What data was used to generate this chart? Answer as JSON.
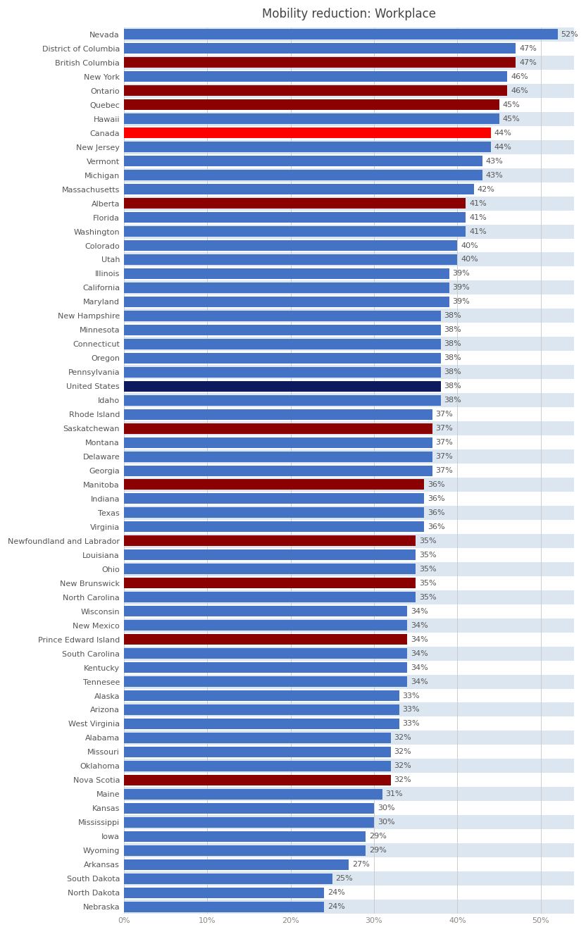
{
  "title": "Mobility reduction: Workplace",
  "categories": [
    "Nevada",
    "District of Columbia",
    "British Columbia",
    "New York",
    "Ontario",
    "Quebec",
    "Hawaii",
    "Canada",
    "New Jersey",
    "Vermont",
    "Michigan",
    "Massachusetts",
    "Alberta",
    "Florida",
    "Washington",
    "Colorado",
    "Utah",
    "Illinois",
    "California",
    "Maryland",
    "New Hampshire",
    "Minnesota",
    "Connecticut",
    "Oregon",
    "Pennsylvania",
    "United States",
    "Idaho",
    "Rhode Island",
    "Saskatchewan",
    "Montana",
    "Delaware",
    "Georgia",
    "Manitoba",
    "Indiana",
    "Texas",
    "Virginia",
    "Newfoundland and Labrador",
    "Louisiana",
    "Ohio",
    "New Brunswick",
    "North Carolina",
    "Wisconsin",
    "New Mexico",
    "Prince Edward Island",
    "South Carolina",
    "Kentucky",
    "Tennesee",
    "Alaska",
    "Arizona",
    "West Virginia",
    "Alabama",
    "Missouri",
    "Oklahoma",
    "Nova Scotia",
    "Maine",
    "Kansas",
    "Mississippi",
    "Iowa",
    "Wyoming",
    "Arkansas",
    "South Dakota",
    "North Dakota",
    "Nebraska"
  ],
  "values": [
    52,
    47,
    47,
    46,
    46,
    45,
    45,
    44,
    44,
    43,
    43,
    42,
    41,
    41,
    41,
    40,
    40,
    39,
    39,
    39,
    38,
    38,
    38,
    38,
    38,
    38,
    38,
    37,
    37,
    37,
    37,
    37,
    36,
    36,
    36,
    36,
    35,
    35,
    35,
    35,
    35,
    34,
    34,
    34,
    34,
    34,
    34,
    33,
    33,
    33,
    32,
    32,
    32,
    32,
    31,
    30,
    30,
    29,
    29,
    27,
    25,
    24,
    24
  ],
  "colors": {
    "Nevada": "#4472C4",
    "District of Columbia": "#4472C4",
    "British Columbia": "#8B0000",
    "New York": "#4472C4",
    "Ontario": "#8B0000",
    "Quebec": "#8B0000",
    "Hawaii": "#4472C4",
    "Canada": "#FF0000",
    "New Jersey": "#4472C4",
    "Vermont": "#4472C4",
    "Michigan": "#4472C4",
    "Massachusetts": "#4472C4",
    "Alberta": "#8B0000",
    "Florida": "#4472C4",
    "Washington": "#4472C4",
    "Colorado": "#4472C4",
    "Utah": "#4472C4",
    "Illinois": "#4472C4",
    "California": "#4472C4",
    "Maryland": "#4472C4",
    "New Hampshire": "#4472C4",
    "Minnesota": "#4472C4",
    "Connecticut": "#4472C4",
    "Oregon": "#4472C4",
    "Pennsylvania": "#4472C4",
    "United States": "#0D1B5E",
    "Idaho": "#4472C4",
    "Rhode Island": "#4472C4",
    "Saskatchewan": "#8B0000",
    "Montana": "#4472C4",
    "Delaware": "#4472C4",
    "Georgia": "#4472C4",
    "Manitoba": "#8B0000",
    "Indiana": "#4472C4",
    "Texas": "#4472C4",
    "Virginia": "#4472C4",
    "Newfoundland and Labrador": "#8B0000",
    "Louisiana": "#4472C4",
    "Ohio": "#4472C4",
    "New Brunswick": "#8B0000",
    "North Carolina": "#4472C4",
    "Wisconsin": "#4472C4",
    "New Mexico": "#4472C4",
    "Prince Edward Island": "#8B0000",
    "South Carolina": "#4472C4",
    "Kentucky": "#4472C4",
    "Tennesee": "#4472C4",
    "Alaska": "#4472C4",
    "Arizona": "#4472C4",
    "West Virginia": "#4472C4",
    "Alabama": "#4472C4",
    "Missouri": "#4472C4",
    "Oklahoma": "#4472C4",
    "Nova Scotia": "#8B0000",
    "Maine": "#4472C4",
    "Kansas": "#4472C4",
    "Mississippi": "#4472C4",
    "Iowa": "#4472C4",
    "Wyoming": "#4472C4",
    "Arkansas": "#4472C4",
    "South Dakota": "#4472C4",
    "North Dakota": "#4472C4",
    "Nebraska": "#4472C4"
  },
  "xlim_max": 54,
  "xtick_values": [
    0,
    10,
    20,
    30,
    40,
    50
  ],
  "xtick_labels": [
    "0%",
    "10%",
    "20%",
    "30%",
    "40%",
    "50%"
  ],
  "background_color": "#FFFFFF",
  "stripe_color_even": "#DCE6F1",
  "stripe_color_odd": "#FFFFFF",
  "title_fontsize": 12,
  "label_fontsize": 8,
  "value_fontsize": 8
}
